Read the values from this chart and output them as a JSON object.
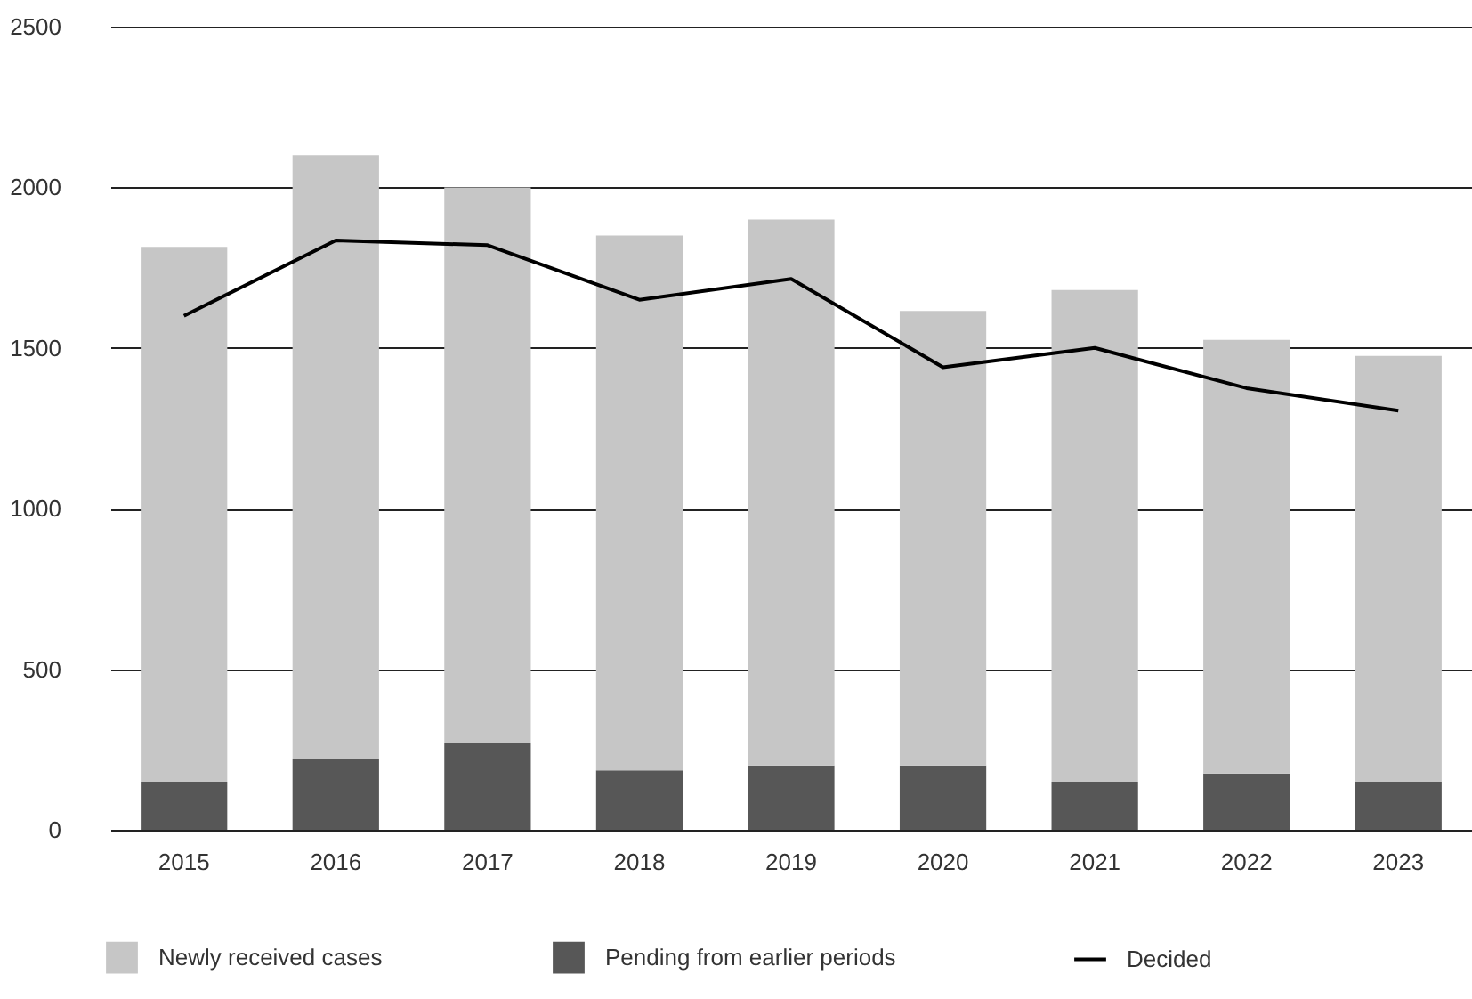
{
  "chart_data": {
    "type": "bar",
    "stacked": true,
    "categories": [
      "2015",
      "2016",
      "2017",
      "2018",
      "2019",
      "2020",
      "2021",
      "2022",
      "2023"
    ],
    "series": [
      {
        "name": "Pending from earlier periods",
        "color": "#575757",
        "values": [
          150,
          220,
          270,
          185,
          200,
          200,
          150,
          175,
          150
        ]
      },
      {
        "name": "Newly received cases",
        "color": "#c6c6c6",
        "values": [
          1665,
          1880,
          1730,
          1665,
          1700,
          1415,
          1530,
          1350,
          1325
        ]
      },
      {
        "name": "Decided",
        "color": "#000000",
        "type": "line",
        "values": [
          1600,
          1835,
          1820,
          1650,
          1715,
          1440,
          1500,
          1375,
          1305
        ]
      }
    ],
    "ylim": [
      0,
      2500
    ],
    "yticks": [
      0,
      500,
      1000,
      1500,
      2000,
      2500
    ],
    "grid": "y",
    "legend": "bottom"
  }
}
